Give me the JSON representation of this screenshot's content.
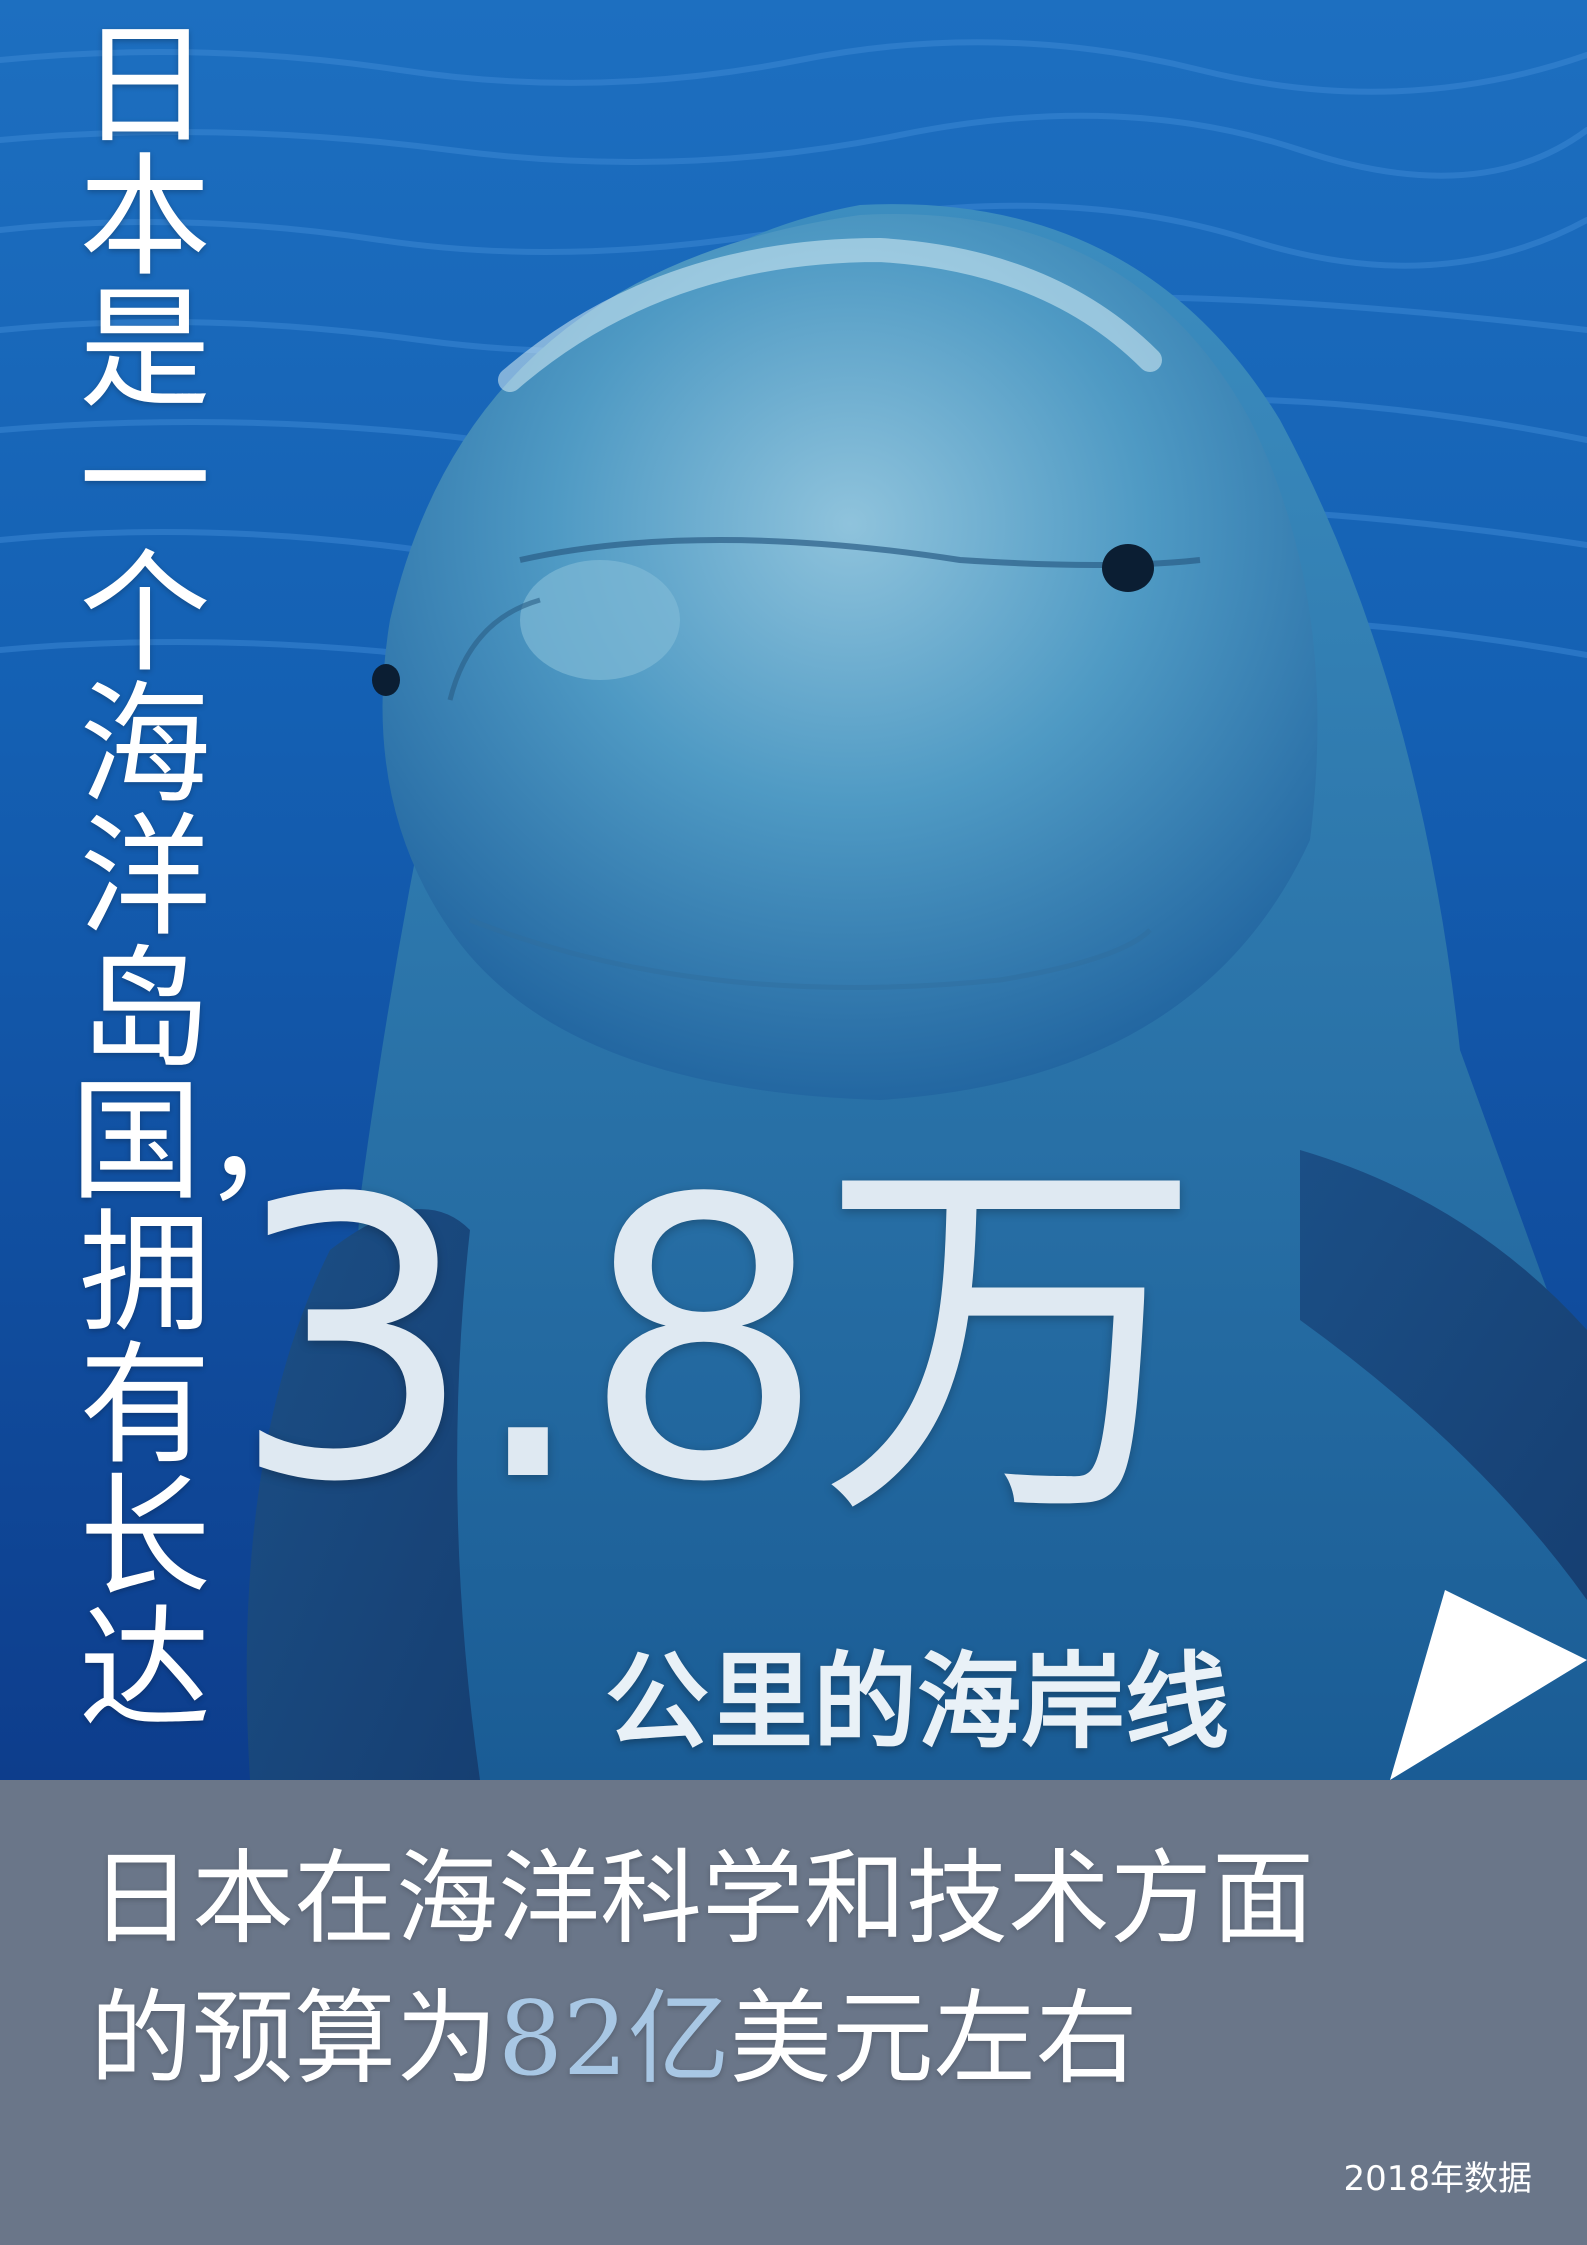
{
  "headline": {
    "vertical_text": "日本是一个海洋岛国，拥有长达",
    "big_number": "3.8万",
    "caption": "公里的海岸线"
  },
  "fact": {
    "line1": "日本在海洋科学和技术方面",
    "line2_before": "的预算为",
    "highlight": "82亿",
    "line2_after": "美元左右"
  },
  "source_note": "2018年数据",
  "colors": {
    "ocean": "#0a4f9e",
    "panel": "#6a7689",
    "highlight": "#a8c7e4",
    "text": "#ffffff"
  }
}
